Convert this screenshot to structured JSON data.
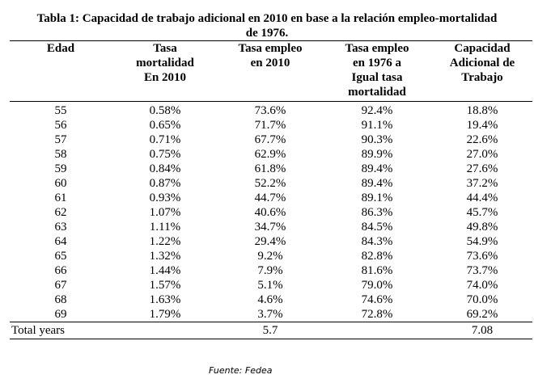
{
  "title": {
    "line1": "Tabla 1: Capacidad de trabajo adicional en 2010 en base a la relación empleo-mortalidad",
    "line2": "de 1976."
  },
  "columns": [
    {
      "lines": [
        "Edad"
      ]
    },
    {
      "lines": [
        "Tasa",
        "mortalidad",
        "En 2010"
      ]
    },
    {
      "lines": [
        "Tasa empleo",
        "en 2010"
      ]
    },
    {
      "lines": [
        "Tasa empleo",
        "en 1976 a",
        "Igual tasa",
        "mortalidad"
      ]
    },
    {
      "lines": [
        "Capacidad",
        "Adicional de",
        "Trabajo"
      ]
    }
  ],
  "rows": [
    [
      "55",
      "0.58%",
      "73.6%",
      "92.4%",
      "18.8%"
    ],
    [
      "56",
      "0.65%",
      "71.7%",
      "91.1%",
      "19.4%"
    ],
    [
      "57",
      "0.71%",
      "67.7%",
      "90.3%",
      "22.6%"
    ],
    [
      "58",
      "0.75%",
      "62.9%",
      "89.9%",
      "27.0%"
    ],
    [
      "59",
      "0.84%",
      "61.8%",
      "89.4%",
      "27.6%"
    ],
    [
      "60",
      "0.87%",
      "52.2%",
      "89.4%",
      "37.2%"
    ],
    [
      "61",
      "0.93%",
      "44.7%",
      "89.1%",
      "44.4%"
    ],
    [
      "62",
      "1.07%",
      "40.6%",
      "86.3%",
      "45.7%"
    ],
    [
      "63",
      "1.11%",
      "34.7%",
      "84.5%",
      "49.8%"
    ],
    [
      "64",
      "1.22%",
      "29.4%",
      "84.3%",
      "54.9%"
    ],
    [
      "65",
      "1.32%",
      "9.2%",
      "82.8%",
      "73.6%"
    ],
    [
      "66",
      "1.44%",
      "7.9%",
      "81.6%",
      "73.7%"
    ],
    [
      "67",
      "1.57%",
      "5.1%",
      "79.0%",
      "74.0%"
    ],
    [
      "68",
      "1.63%",
      "4.6%",
      "74.6%",
      "70.0%"
    ],
    [
      "69",
      "1.79%",
      "3.7%",
      "72.8%",
      "69.2%"
    ]
  ],
  "total": {
    "label": "Total years",
    "values": [
      "",
      "5.7",
      "",
      "7.08"
    ]
  },
  "source": "Fuente: Fedea"
}
